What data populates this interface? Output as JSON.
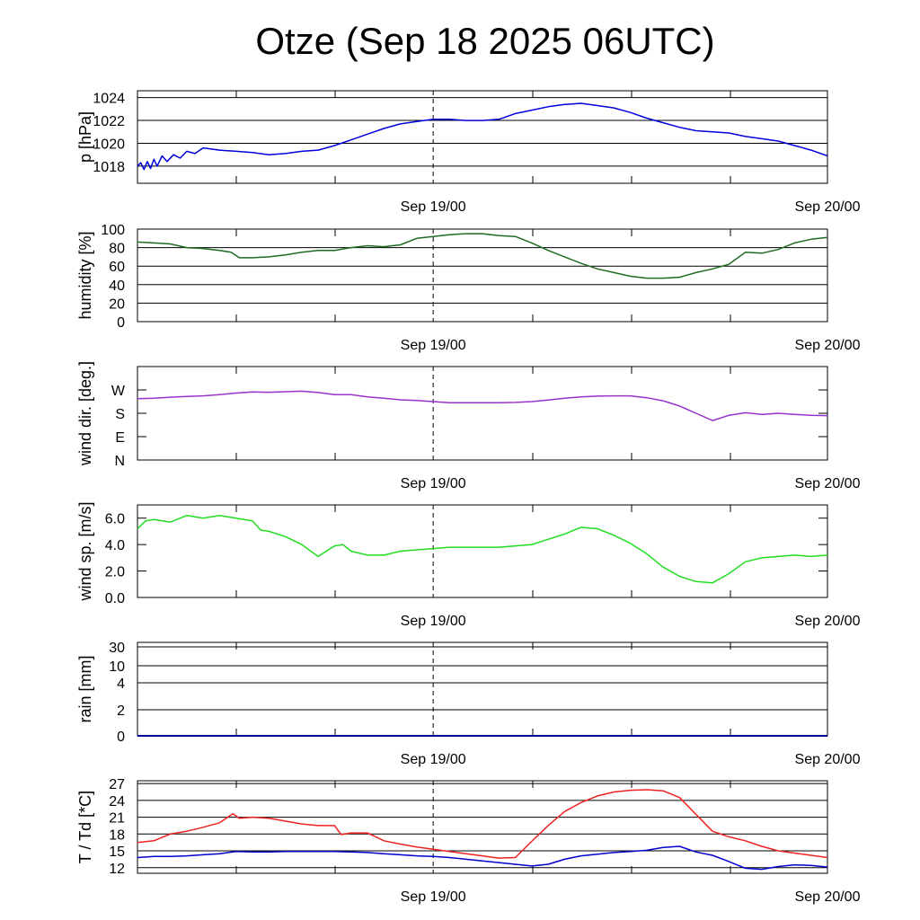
{
  "title": "Otze (Sep 18 2025 06UTC)",
  "chart_data": [
    {
      "type": "line",
      "ylabel": "p [hPa]",
      "ylim": [
        1016.5,
        1024.6
      ],
      "yticks": [
        1018,
        1020,
        1022,
        1024
      ],
      "yticklabels": [
        "1018",
        "1020",
        "1022",
        "1024"
      ],
      "grid": true,
      "xlim": [
        0,
        42
      ],
      "xticklabels": [
        {
          "x": 18,
          "label": "Sep 19/00"
        },
        {
          "x": 42,
          "label": "Sep 20/00"
        }
      ],
      "series": [
        {
          "name": "pressure",
          "color": "#0000dd",
          "x": [
            0,
            0.2,
            0.4,
            0.6,
            0.8,
            1.0,
            1.2,
            1.5,
            1.8,
            2.2,
            2.6,
            3,
            3.5,
            4,
            5,
            6,
            7,
            8,
            9,
            10,
            11,
            12,
            13,
            14,
            15,
            16,
            17,
            18,
            19,
            20,
            21,
            22,
            23,
            24,
            25,
            26,
            27,
            28,
            29,
            30,
            31,
            32,
            33,
            34,
            35,
            36,
            37,
            38,
            39,
            40,
            41,
            42
          ],
          "values": [
            1018.0,
            1018.3,
            1017.7,
            1018.4,
            1017.8,
            1018.6,
            1018.0,
            1018.9,
            1018.4,
            1019.0,
            1018.7,
            1019.3,
            1019.1,
            1019.6,
            1019.4,
            1019.3,
            1019.2,
            1019.0,
            1019.1,
            1019.3,
            1019.4,
            1019.8,
            1020.3,
            1020.8,
            1021.3,
            1021.7,
            1021.9,
            1022.1,
            1022.1,
            1022.0,
            1022.0,
            1022.1,
            1022.6,
            1022.9,
            1023.2,
            1023.4,
            1023.5,
            1023.3,
            1023.1,
            1022.7,
            1022.2,
            1021.8,
            1021.4,
            1021.1,
            1021.0,
            1020.9,
            1020.6,
            1020.4,
            1020.2,
            1019.8,
            1019.4,
            1018.9
          ]
        }
      ]
    },
    {
      "type": "line",
      "ylabel": "humidity [%]",
      "ylim": [
        0,
        100
      ],
      "yticks": [
        0,
        20,
        40,
        60,
        80,
        100
      ],
      "yticklabels": [
        "0",
        "20",
        "40",
        "60",
        "80",
        "100"
      ],
      "grid": true,
      "xlim": [
        0,
        42
      ],
      "xticklabels": [
        {
          "x": 18,
          "label": "Sep 19/00"
        },
        {
          "x": 42,
          "label": "Sep 20/00"
        }
      ],
      "series": [
        {
          "name": "humidity",
          "color": "#1f6b1f",
          "x": [
            0,
            1,
            2,
            3,
            4,
            5,
            5.7,
            6.2,
            7,
            8,
            9,
            10,
            11,
            12,
            13,
            14,
            15,
            16,
            17,
            18,
            19,
            20,
            21,
            22,
            23,
            24,
            25,
            26,
            27,
            28,
            29,
            30,
            31,
            32,
            33,
            34,
            35,
            36,
            37,
            38,
            39,
            40,
            41,
            42
          ],
          "values": [
            86,
            85,
            84,
            80,
            79,
            77,
            75,
            69,
            69,
            70,
            72,
            75,
            77,
            77,
            80,
            82,
            81,
            83,
            90,
            92,
            94,
            95,
            95,
            93,
            92,
            85,
            77,
            70,
            63,
            57,
            53,
            49,
            47,
            47,
            48,
            53,
            57,
            62,
            75,
            74,
            78,
            85,
            89,
            91
          ]
        }
      ]
    },
    {
      "type": "line",
      "ylabel": "wind dir. [deg.]",
      "ylim": [
        0,
        360
      ],
      "yticks": [
        0,
        90,
        180,
        270
      ],
      "yticklabels": [
        "N",
        "E",
        "S",
        "W"
      ],
      "grid": false,
      "xlim": [
        0,
        42
      ],
      "xticklabels": [
        {
          "x": 18,
          "label": "Sep 19/00"
        },
        {
          "x": 42,
          "label": "Sep 20/00"
        }
      ],
      "series": [
        {
          "name": "wind direction",
          "color": "#9933cc",
          "x": [
            0,
            1,
            2,
            3,
            4,
            5,
            6,
            7,
            8,
            9,
            10,
            11,
            12,
            13,
            14,
            15,
            16,
            17,
            18,
            19,
            20,
            21,
            22,
            23,
            24,
            25,
            26,
            27,
            28,
            29,
            30,
            31,
            32,
            33,
            34,
            35,
            36,
            37,
            38,
            39,
            40,
            41,
            42
          ],
          "values": [
            236,
            238,
            242,
            245,
            247,
            252,
            258,
            262,
            261,
            263,
            265,
            260,
            252,
            252,
            243,
            238,
            232,
            229,
            225,
            221,
            221,
            221,
            221,
            222,
            225,
            231,
            238,
            243,
            246,
            247,
            247,
            240,
            228,
            208,
            180,
            152,
            172,
            182,
            176,
            180,
            176,
            172,
            171
          ]
        }
      ]
    },
    {
      "type": "line",
      "ylabel": "wind sp. [m/s]",
      "ylim": [
        0,
        7
      ],
      "yticks": [
        0,
        2,
        4,
        6
      ],
      "yticklabels": [
        "0.0",
        "2.0",
        "4.0",
        "6.0"
      ],
      "grid": false,
      "xlim": [
        0,
        42
      ],
      "xticklabels": [
        {
          "x": 18,
          "label": "Sep 19/00"
        },
        {
          "x": 42,
          "label": "Sep 20/00"
        }
      ],
      "series": [
        {
          "name": "wind speed",
          "color": "#22dd22",
          "x": [
            0,
            0.5,
            1,
            2,
            3,
            4,
            5,
            6,
            7,
            7.5,
            8,
            9,
            10,
            11,
            12,
            12.5,
            13,
            14,
            15,
            16,
            17,
            18,
            19,
            20,
            21,
            22,
            23,
            24,
            25,
            26,
            27,
            28,
            29,
            30,
            31,
            32,
            33,
            34,
            35,
            36,
            37,
            38,
            39,
            40,
            41,
            42
          ],
          "values": [
            5.2,
            5.8,
            5.9,
            5.7,
            6.2,
            6.0,
            6.2,
            6.0,
            5.8,
            5.1,
            5.0,
            4.6,
            4.0,
            3.1,
            3.9,
            4.0,
            3.5,
            3.2,
            3.2,
            3.5,
            3.6,
            3.7,
            3.8,
            3.8,
            3.8,
            3.8,
            3.9,
            4.0,
            4.4,
            4.8,
            5.3,
            5.2,
            4.7,
            4.1,
            3.3,
            2.3,
            1.6,
            1.2,
            1.1,
            1.8,
            2.7,
            3.0,
            3.1,
            3.2,
            3.1,
            3.2
          ]
        }
      ]
    },
    {
      "type": "line",
      "ylabel": "rain [mm]",
      "ylim": [
        0,
        30
      ],
      "yticks": [
        0,
        2,
        4,
        10,
        30
      ],
      "yticklabels": [
        "0",
        "2",
        "4",
        "10",
        "30"
      ],
      "grid": true,
      "xlim": [
        0,
        42
      ],
      "xticklabels": [
        {
          "x": 18,
          "label": "Sep 19/00"
        },
        {
          "x": 42,
          "label": "Sep 20/00"
        }
      ],
      "series": [
        {
          "name": "rain",
          "color": "#000099",
          "x": [
            0,
            42
          ],
          "values": [
            0,
            0
          ]
        }
      ]
    },
    {
      "type": "line",
      "ylabel": "T / Td [*C]",
      "ylim": [
        11,
        27.5
      ],
      "yticks": [
        12,
        15,
        18,
        21,
        24,
        27
      ],
      "yticklabels": [
        "12",
        "15",
        "18",
        "21",
        "24",
        "27"
      ],
      "grid": true,
      "xlim": [
        0,
        42
      ],
      "xticklabels": [
        {
          "x": 18,
          "label": "Sep 19/00"
        },
        {
          "x": 42,
          "label": "Sep 20/00"
        }
      ],
      "series": [
        {
          "name": "T",
          "color": "#ee2222",
          "x": [
            0,
            1,
            2,
            3,
            4,
            5,
            5.8,
            6.2,
            7,
            8,
            9,
            10,
            11,
            12,
            12.4,
            13,
            14,
            15,
            16,
            17,
            18,
            19,
            20,
            21,
            22,
            23,
            24,
            25,
            26,
            27,
            28,
            29,
            30,
            31,
            32,
            33,
            34,
            35,
            36,
            37,
            38,
            39,
            40,
            41,
            42
          ],
          "values": [
            16.5,
            16.8,
            18.0,
            18.5,
            19.2,
            20.0,
            21.6,
            20.8,
            21.0,
            20.8,
            20.3,
            19.8,
            19.5,
            19.5,
            17.9,
            18.2,
            18.2,
            16.8,
            16.2,
            15.7,
            15.3,
            14.9,
            14.5,
            14.1,
            13.7,
            13.8,
            16.7,
            19.5,
            22.0,
            23.6,
            24.8,
            25.5,
            25.8,
            25.9,
            25.7,
            24.5,
            21.5,
            18.5,
            17.5,
            16.8,
            15.8,
            15.0,
            14.6,
            14.2,
            13.8
          ]
        },
        {
          "name": "Td",
          "color": "#0000cc",
          "x": [
            0,
            1,
            2,
            3,
            4,
            5,
            6,
            7,
            8,
            9,
            10,
            11,
            12,
            13,
            14,
            15,
            16,
            17,
            18,
            19,
            20,
            21,
            22,
            23,
            24,
            25,
            26,
            27,
            28,
            29,
            30,
            31,
            32,
            33,
            34,
            35,
            36,
            37,
            38,
            39,
            40,
            41,
            42
          ],
          "values": [
            13.8,
            14.0,
            14.0,
            14.1,
            14.3,
            14.5,
            14.9,
            14.8,
            14.8,
            14.9,
            14.9,
            14.9,
            14.9,
            14.8,
            14.7,
            14.5,
            14.3,
            14.1,
            14.0,
            13.8,
            13.5,
            13.2,
            12.9,
            12.6,
            12.3,
            12.6,
            13.5,
            14.1,
            14.4,
            14.7,
            14.9,
            15.1,
            15.6,
            15.8,
            14.8,
            14.2,
            13.1,
            11.9,
            11.7,
            12.2,
            12.5,
            12.4,
            12.1
          ]
        }
      ]
    }
  ]
}
